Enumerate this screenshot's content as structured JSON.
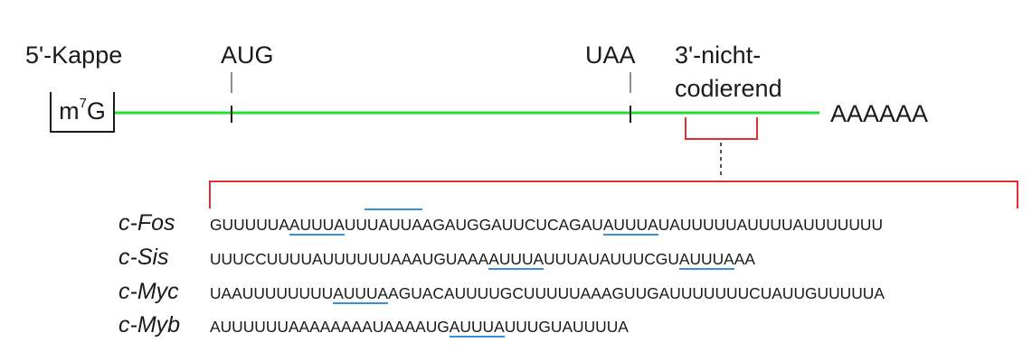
{
  "labels": {
    "cap": "5'-Kappe",
    "start": "AUG",
    "stop": "UAA",
    "utr_line1": "3'-nicht-",
    "utr_line2": "codierend",
    "polya": "AAAAAA"
  },
  "cap_box": {
    "base": "m",
    "superscript": "7",
    "letter": "G"
  },
  "colors": {
    "mrna": "#22dd33",
    "bracket": "#e03030",
    "highlight": "#3a8fd8",
    "text": "#1a1a1a"
  },
  "sequences": [
    {
      "gene": "c-Fos",
      "segments": [
        {
          "t": "GUUUUUA",
          "h": false
        },
        {
          "t": "AUUUA",
          "h": true
        },
        {
          "t": "UUUAUUAAGAUGGAUUCUCAGAU",
          "h": false
        },
        {
          "t": "AUUUA",
          "h": true
        },
        {
          "t": "UAUUUUUAUUUUAUUUUUUU",
          "h": false
        }
      ]
    },
    {
      "gene": "c-Sis",
      "segments": [
        {
          "t": "UUUCCUUUUAUUUUUUAAAUGUAAA",
          "h": false
        },
        {
          "t": "AUUUA",
          "h": true
        },
        {
          "t": "UUUAUAUUUCGU",
          "h": false
        },
        {
          "t": "AUUUA",
          "h": true
        },
        {
          "t": "AA",
          "h": false
        }
      ]
    },
    {
      "gene": "c-Myc",
      "segments": [
        {
          "t": "UAAUUUUUUUU",
          "h": false
        },
        {
          "t": "AUUUA",
          "h": true
        },
        {
          "t": "AGUACAUUUUGCUUUUUAAAGUUGAUUUUUUUCUAUUGUUUUUA",
          "h": false
        }
      ]
    },
    {
      "gene": "c-Myb",
      "segments": [
        {
          "t": "AUUUUUUAAAAAAAAUAAAAUG",
          "h": false
        },
        {
          "t": "AUUUA",
          "h": true
        },
        {
          "t": "UUUGUAUUUUA",
          "h": false
        }
      ]
    }
  ]
}
